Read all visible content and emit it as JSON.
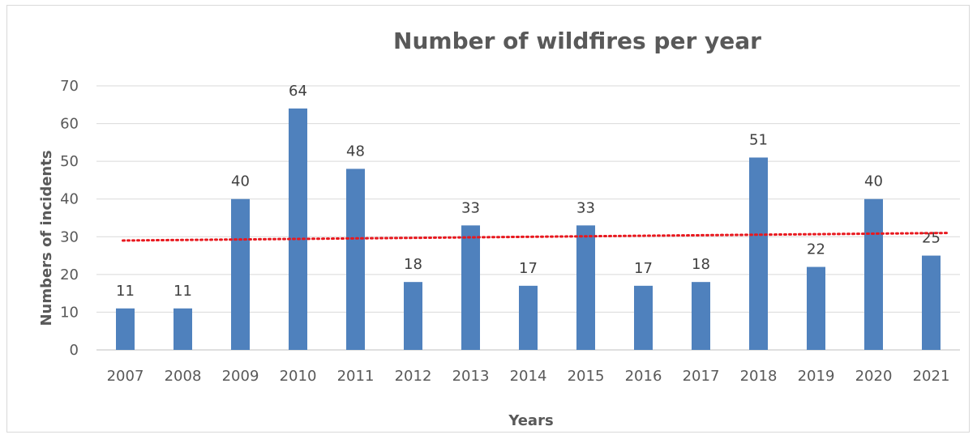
{
  "chart_data": {
    "type": "bar",
    "title": "Number of wildfires per year",
    "xlabel": "Years",
    "ylabel": "Numbers of incidents",
    "categories": [
      "2007",
      "2008",
      "2009",
      "2010",
      "2011",
      "2012",
      "2013",
      "2014",
      "2015",
      "2016",
      "2017",
      "2018",
      "2019",
      "2020",
      "2021"
    ],
    "values": [
      11,
      11,
      40,
      64,
      48,
      18,
      33,
      17,
      33,
      17,
      18,
      51,
      22,
      40,
      25
    ],
    "data_labels": [
      "11",
      "11",
      "40",
      "64",
      "48",
      "18",
      "33",
      "17",
      "33",
      "17",
      "18",
      "51",
      "22",
      "40",
      "25"
    ],
    "ylim": [
      0,
      70
    ],
    "yticks": [
      "0",
      "10",
      "20",
      "30",
      "40",
      "50",
      "60",
      "70"
    ],
    "grid": true,
    "legend": "none",
    "bar_color": "#4f81bd",
    "trendline": {
      "type": "linear",
      "style": "dotted",
      "color": "#e8191f",
      "start": 29,
      "end": 31
    }
  }
}
